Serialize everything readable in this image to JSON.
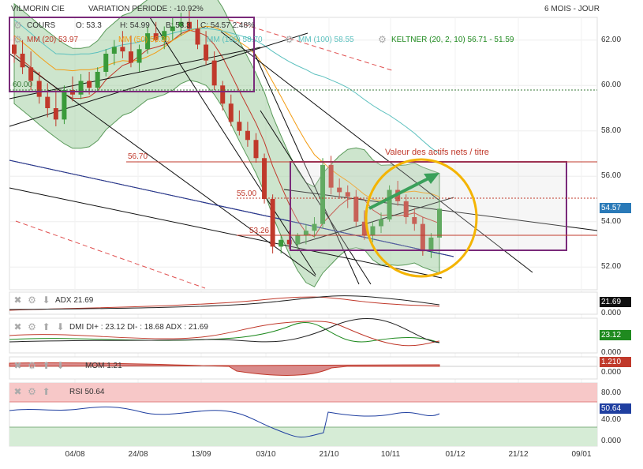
{
  "header": {
    "title": "VILMORIN CIE",
    "variation": "VARIATION PERIODE : -10.92%",
    "period": "6 MOIS - JOUR"
  },
  "legend": {
    "cours": "COURS",
    "ohlc": {
      "o": "O: 53.3",
      "h": "H: 54.99",
      "b": "B: 53.3",
      "c": "C: 54.57 2.48%"
    },
    "mm20": "MM (20) 53.97",
    "mm50": "MM (50) 56.30",
    "mm100a": "MM (100) 58.70",
    "mm100b": "MM (100) 58.55",
    "keltner": "KELTNER (20, 2, 10) 56.71 - 51.59"
  },
  "annotations": {
    "a1": "56.70",
    "a2": "55.00",
    "a3": "53.26",
    "a4": "60.00",
    "nav": "Valeur des actifs nets / titre"
  },
  "indicators": {
    "adx": {
      "label": "ADX 21.69",
      "tag": "21.69",
      "zero": "0.000"
    },
    "dmi": {
      "label": "DMI DI+ : 23.12 DI- : 18.68 ADX : 21.69",
      "tag": "23.12",
      "zero": "0.000"
    },
    "mom": {
      "label": "MOM 1.21",
      "tag": "1.210",
      "zero": "0.000"
    },
    "rsi": {
      "label": "RSI 50.64",
      "tag": "50.64",
      "hi": "80.00",
      "mid": "40.00",
      "lo": "0.000"
    }
  },
  "price_tag": "54.57",
  "colors": {
    "up": "#3a9a3a",
    "down": "#c0392b",
    "band": "#9ccb9c",
    "frame": "#7a2a7a",
    "circle": "#f4b400",
    "mm20": "#c0392b",
    "mm50": "#f39c12",
    "mm100": "#5bc0be"
  },
  "chart_data": {
    "type": "line",
    "title": "",
    "xlabel": "",
    "ylabel": "",
    "ylim": [
      51,
      63
    ],
    "y_ticks": [
      "52.00",
      "54.00",
      "56.00",
      "58.00",
      "60.00",
      "62.00"
    ],
    "x_ticks": [
      "04/08",
      "24/08",
      "13/09",
      "03/10",
      "21/10",
      "10/11",
      "01/12",
      "21/12",
      "09/01"
    ],
    "candles": [
      [
        61.8,
        62.2,
        61.0,
        61.4
      ],
      [
        61.4,
        62.0,
        60.5,
        60.8
      ],
      [
        60.8,
        61.5,
        59.8,
        60.2
      ],
      [
        60.2,
        60.6,
        59.2,
        59.5
      ],
      [
        59.5,
        60.1,
        58.6,
        59.0
      ],
      [
        59.0,
        59.8,
        58.2,
        58.5
      ],
      [
        58.5,
        60.0,
        58.3,
        59.8
      ],
      [
        59.8,
        60.4,
        59.3,
        59.6
      ],
      [
        59.6,
        60.5,
        59.4,
        60.2
      ],
      [
        60.2,
        60.6,
        59.6,
        59.9
      ],
      [
        59.9,
        60.8,
        59.7,
        60.6
      ],
      [
        60.6,
        61.6,
        60.4,
        61.4
      ],
      [
        61.4,
        62.0,
        60.9,
        61.7
      ],
      [
        61.7,
        62.4,
        61.2,
        61.5
      ],
      [
        61.5,
        62.2,
        60.8,
        61.0
      ],
      [
        61.0,
        61.8,
        60.6,
        61.6
      ],
      [
        61.6,
        62.6,
        61.4,
        62.3
      ],
      [
        62.3,
        62.8,
        61.9,
        62.0
      ],
      [
        62.0,
        62.6,
        61.6,
        62.4
      ],
      [
        62.4,
        63.0,
        62.0,
        62.6
      ],
      [
        62.6,
        63.2,
        62.2,
        62.8
      ],
      [
        62.8,
        63.3,
        62.4,
        62.5
      ],
      [
        62.5,
        62.9,
        61.6,
        61.8
      ],
      [
        61.8,
        62.4,
        60.9,
        61.1
      ],
      [
        61.1,
        61.5,
        59.8,
        60.0
      ],
      [
        60.0,
        60.2,
        58.9,
        59.2
      ],
      [
        59.2,
        59.6,
        58.2,
        58.4
      ],
      [
        58.4,
        58.9,
        57.8,
        58.0
      ],
      [
        58.0,
        58.4,
        57.3,
        57.6
      ],
      [
        57.6,
        57.9,
        56.6,
        56.8
      ],
      [
        56.8,
        57.0,
        54.8,
        55.0
      ],
      [
        55.0,
        55.2,
        52.6,
        52.9
      ],
      [
        52.9,
        53.4,
        52.6,
        53.2
      ],
      [
        53.2,
        53.6,
        52.8,
        53.0
      ],
      [
        53.0,
        53.5,
        52.7,
        53.4
      ],
      [
        53.4,
        53.9,
        53.0,
        53.6
      ],
      [
        53.6,
        54.2,
        53.3,
        53.9
      ],
      [
        53.9,
        56.8,
        53.7,
        56.5
      ],
      [
        56.5,
        56.9,
        55.2,
        55.5
      ],
      [
        55.5,
        55.9,
        55.0,
        55.3
      ],
      [
        55.3,
        55.6,
        54.6,
        55.1
      ],
      [
        55.1,
        55.4,
        53.8,
        54.0
      ],
      [
        54.0,
        54.5,
        53.2,
        53.4
      ],
      [
        53.4,
        54.0,
        53.1,
        53.8
      ],
      [
        53.8,
        54.4,
        53.5,
        54.1
      ],
      [
        54.1,
        55.6,
        54.0,
        55.4
      ],
      [
        55.4,
        55.8,
        54.7,
        54.9
      ],
      [
        54.9,
        55.2,
        53.9,
        54.2
      ],
      [
        54.2,
        54.6,
        53.6,
        53.9
      ],
      [
        53.9,
        54.2,
        52.5,
        52.7
      ],
      [
        52.7,
        53.5,
        52.4,
        53.3
      ],
      [
        53.3,
        54.99,
        53.3,
        54.57
      ]
    ]
  }
}
